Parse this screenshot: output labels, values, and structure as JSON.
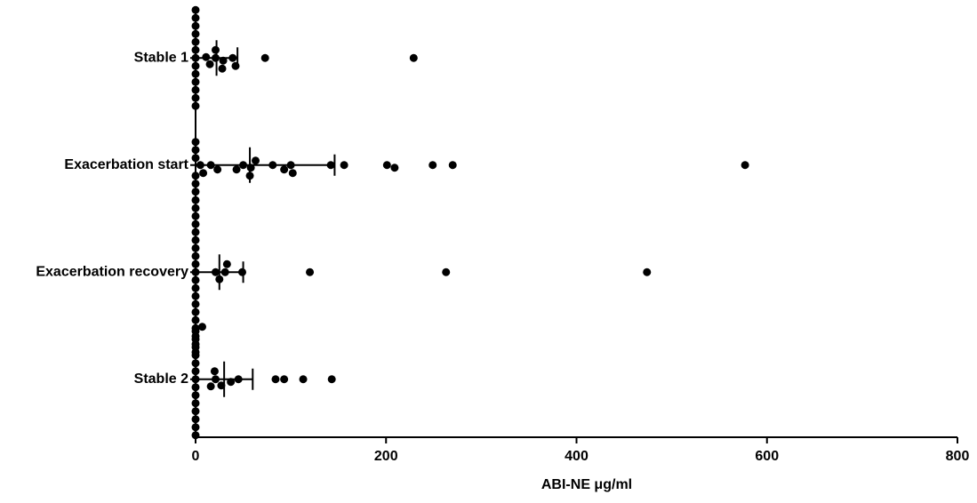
{
  "chart_data": {
    "type": "dotplot",
    "xlabel": "ABI-NE μg/ml",
    "categories": [
      "Stable 1",
      "Exacerbation start",
      "Exacerbation recovery",
      "Stable 2"
    ],
    "values": [
      [
        0,
        0,
        0,
        0,
        0,
        0,
        0,
        0,
        0,
        0,
        0,
        0,
        0,
        21,
        39,
        15,
        29,
        21,
        42,
        28,
        11,
        73,
        229
      ],
      [
        5,
        16,
        50,
        100,
        8,
        58,
        93,
        156,
        201,
        0,
        0,
        43,
        249,
        270,
        577,
        23,
        63,
        81,
        102,
        142,
        209,
        57,
        0,
        0,
        0,
        0
      ],
      [
        0,
        0,
        0,
        0,
        0,
        0,
        0,
        0,
        0,
        0,
        0,
        0,
        0,
        0,
        0,
        0,
        0,
        0,
        0,
        0,
        31,
        21,
        49,
        120,
        263,
        474,
        25,
        33
      ],
      [
        0,
        0,
        0,
        0,
        0,
        0,
        0,
        0,
        0,
        0,
        0,
        0,
        0,
        0,
        21,
        16,
        7,
        45,
        84,
        113,
        143,
        37,
        93,
        20,
        27
      ]
    ],
    "means": [
      22,
      57,
      25,
      30
    ],
    "errors": [
      22,
      89,
      25,
      30
    ],
    "color": "#000000",
    "xlim": [
      0,
      800
    ],
    "xticks": [
      0,
      200,
      400,
      600,
      800
    ]
  }
}
